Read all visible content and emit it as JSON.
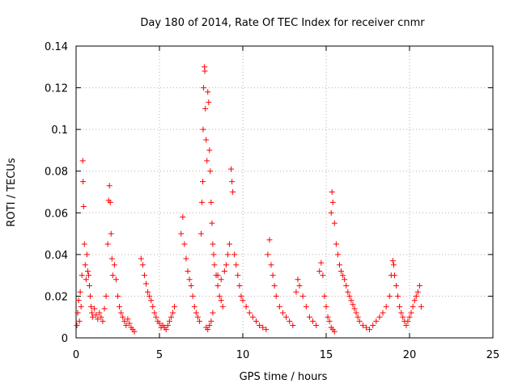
{
  "chart_data": {
    "type": "scatter",
    "title": "Day 180 of 2014, Rate Of TEC Index for receiver cnmr",
    "xlabel": "GPS time / hours",
    "ylabel": "ROTI / TECUs",
    "xlim": [
      0,
      25
    ],
    "ylim": [
      0,
      0.14
    ],
    "x_ticks": [
      "0",
      "5",
      "10",
      "15",
      "20",
      "25"
    ],
    "y_ticks": [
      "0",
      "0.02",
      "0.04",
      "0.06",
      "0.08",
      "0.1",
      "0.12",
      "0.14"
    ],
    "grid": true,
    "marker": "+",
    "color": "#ff0000",
    "series": [
      {
        "name": "ROTI",
        "points": [
          [
            0.05,
            0.006
          ],
          [
            0.1,
            0.012
          ],
          [
            0.15,
            0.018
          ],
          [
            0.2,
            0.008
          ],
          [
            0.25,
            0.022
          ],
          [
            0.3,
            0.015
          ],
          [
            0.35,
            0.03
          ],
          [
            0.4,
            0.085
          ],
          [
            0.42,
            0.075
          ],
          [
            0.45,
            0.063
          ],
          [
            0.5,
            0.045
          ],
          [
            0.55,
            0.035
          ],
          [
            0.6,
            0.028
          ],
          [
            0.65,
            0.04
          ],
          [
            0.7,
            0.032
          ],
          [
            0.75,
            0.03
          ],
          [
            0.8,
            0.025
          ],
          [
            0.85,
            0.02
          ],
          [
            0.9,
            0.015
          ],
          [
            0.95,
            0.012
          ],
          [
            1.0,
            0.01
          ],
          [
            1.1,
            0.014
          ],
          [
            1.2,
            0.011
          ],
          [
            1.3,
            0.009
          ],
          [
            1.4,
            0.012
          ],
          [
            1.5,
            0.01
          ],
          [
            1.6,
            0.008
          ],
          [
            1.7,
            0.014
          ],
          [
            1.8,
            0.02
          ],
          [
            1.9,
            0.045
          ],
          [
            1.95,
            0.066
          ],
          [
            2.0,
            0.073
          ],
          [
            2.05,
            0.065
          ],
          [
            2.1,
            0.05
          ],
          [
            2.15,
            0.038
          ],
          [
            2.2,
            0.03
          ],
          [
            2.3,
            0.035
          ],
          [
            2.4,
            0.028
          ],
          [
            2.5,
            0.02
          ],
          [
            2.6,
            0.015
          ],
          [
            2.7,
            0.012
          ],
          [
            2.8,
            0.01
          ],
          [
            2.9,
            0.008
          ],
          [
            3.0,
            0.006
          ],
          [
            3.1,
            0.009
          ],
          [
            3.2,
            0.007
          ],
          [
            3.3,
            0.005
          ],
          [
            3.4,
            0.004
          ],
          [
            3.5,
            0.003
          ],
          [
            3.9,
            0.038
          ],
          [
            4.0,
            0.035
          ],
          [
            4.1,
            0.03
          ],
          [
            4.2,
            0.026
          ],
          [
            4.3,
            0.022
          ],
          [
            4.4,
            0.02
          ],
          [
            4.5,
            0.018
          ],
          [
            4.6,
            0.015
          ],
          [
            4.7,
            0.012
          ],
          [
            4.8,
            0.01
          ],
          [
            4.9,
            0.008
          ],
          [
            5.0,
            0.007
          ],
          [
            5.1,
            0.005
          ],
          [
            5.2,
            0.006
          ],
          [
            5.3,
            0.005
          ],
          [
            5.4,
            0.004
          ],
          [
            5.5,
            0.006
          ],
          [
            5.6,
            0.008
          ],
          [
            5.7,
            0.01
          ],
          [
            5.8,
            0.012
          ],
          [
            5.9,
            0.015
          ],
          [
            6.3,
            0.05
          ],
          [
            6.4,
            0.058
          ],
          [
            6.5,
            0.045
          ],
          [
            6.6,
            0.038
          ],
          [
            6.7,
            0.032
          ],
          [
            6.8,
            0.028
          ],
          [
            6.9,
            0.025
          ],
          [
            7.0,
            0.02
          ],
          [
            7.1,
            0.015
          ],
          [
            7.2,
            0.012
          ],
          [
            7.3,
            0.01
          ],
          [
            7.4,
            0.008
          ],
          [
            7.5,
            0.05
          ],
          [
            7.55,
            0.065
          ],
          [
            7.6,
            0.075
          ],
          [
            7.62,
            0.1
          ],
          [
            7.65,
            0.12
          ],
          [
            7.7,
            0.13
          ],
          [
            7.72,
            0.128
          ],
          [
            7.75,
            0.11
          ],
          [
            7.8,
            0.095
          ],
          [
            7.85,
            0.085
          ],
          [
            7.9,
            0.118
          ],
          [
            7.95,
            0.113
          ],
          [
            8.0,
            0.09
          ],
          [
            8.05,
            0.08
          ],
          [
            8.1,
            0.065
          ],
          [
            8.15,
            0.055
          ],
          [
            8.2,
            0.045
          ],
          [
            8.25,
            0.04
          ],
          [
            8.3,
            0.035
          ],
          [
            8.4,
            0.03
          ],
          [
            8.5,
            0.025
          ],
          [
            8.6,
            0.02
          ],
          [
            8.7,
            0.018
          ],
          [
            8.8,
            0.015
          ],
          [
            7.8,
            0.005
          ],
          [
            7.9,
            0.004
          ],
          [
            8.0,
            0.006
          ],
          [
            8.1,
            0.008
          ],
          [
            8.2,
            0.012
          ],
          [
            8.5,
            0.03
          ],
          [
            8.7,
            0.028
          ],
          [
            8.9,
            0.032
          ],
          [
            9.0,
            0.035
          ],
          [
            9.1,
            0.04
          ],
          [
            9.2,
            0.045
          ],
          [
            9.3,
            0.081
          ],
          [
            9.35,
            0.075
          ],
          [
            9.4,
            0.07
          ],
          [
            9.5,
            0.04
          ],
          [
            9.6,
            0.035
          ],
          [
            9.7,
            0.03
          ],
          [
            9.8,
            0.025
          ],
          [
            9.9,
            0.02
          ],
          [
            10.0,
            0.018
          ],
          [
            10.2,
            0.015
          ],
          [
            10.4,
            0.012
          ],
          [
            10.6,
            0.01
          ],
          [
            10.8,
            0.008
          ],
          [
            11.0,
            0.006
          ],
          [
            11.2,
            0.005
          ],
          [
            11.4,
            0.004
          ],
          [
            11.5,
            0.04
          ],
          [
            11.6,
            0.047
          ],
          [
            11.7,
            0.035
          ],
          [
            11.8,
            0.03
          ],
          [
            11.9,
            0.025
          ],
          [
            12.0,
            0.02
          ],
          [
            12.2,
            0.015
          ],
          [
            12.4,
            0.012
          ],
          [
            12.6,
            0.01
          ],
          [
            12.8,
            0.008
          ],
          [
            13.0,
            0.006
          ],
          [
            13.2,
            0.022
          ],
          [
            13.3,
            0.028
          ],
          [
            13.4,
            0.025
          ],
          [
            13.6,
            0.02
          ],
          [
            13.8,
            0.015
          ],
          [
            14.0,
            0.01
          ],
          [
            14.2,
            0.008
          ],
          [
            14.4,
            0.006
          ],
          [
            14.6,
            0.032
          ],
          [
            14.7,
            0.036
          ],
          [
            14.8,
            0.03
          ],
          [
            14.9,
            0.02
          ],
          [
            15.0,
            0.015
          ],
          [
            15.1,
            0.01
          ],
          [
            15.2,
            0.008
          ],
          [
            15.3,
            0.005
          ],
          [
            15.4,
            0.004
          ],
          [
            15.5,
            0.003
          ],
          [
            15.3,
            0.06
          ],
          [
            15.35,
            0.07
          ],
          [
            15.4,
            0.065
          ],
          [
            15.5,
            0.055
          ],
          [
            15.6,
            0.045
          ],
          [
            15.7,
            0.04
          ],
          [
            15.8,
            0.035
          ],
          [
            15.9,
            0.032
          ],
          [
            16.0,
            0.03
          ],
          [
            16.1,
            0.028
          ],
          [
            16.2,
            0.025
          ],
          [
            16.3,
            0.022
          ],
          [
            16.4,
            0.02
          ],
          [
            16.5,
            0.018
          ],
          [
            16.6,
            0.016
          ],
          [
            16.7,
            0.014
          ],
          [
            16.8,
            0.012
          ],
          [
            16.9,
            0.01
          ],
          [
            17.0,
            0.008
          ],
          [
            17.2,
            0.006
          ],
          [
            17.4,
            0.005
          ],
          [
            17.6,
            0.004
          ],
          [
            17.8,
            0.006
          ],
          [
            18.0,
            0.008
          ],
          [
            18.2,
            0.01
          ],
          [
            18.4,
            0.012
          ],
          [
            18.6,
            0.015
          ],
          [
            18.8,
            0.02
          ],
          [
            18.9,
            0.03
          ],
          [
            19.0,
            0.037
          ],
          [
            19.05,
            0.035
          ],
          [
            19.1,
            0.03
          ],
          [
            19.2,
            0.025
          ],
          [
            19.3,
            0.02
          ],
          [
            19.4,
            0.015
          ],
          [
            19.5,
            0.012
          ],
          [
            19.6,
            0.01
          ],
          [
            19.7,
            0.008
          ],
          [
            19.8,
            0.006
          ],
          [
            19.9,
            0.008
          ],
          [
            20.0,
            0.01
          ],
          [
            20.1,
            0.012
          ],
          [
            20.2,
            0.015
          ],
          [
            20.3,
            0.018
          ],
          [
            20.4,
            0.02
          ],
          [
            20.5,
            0.022
          ],
          [
            20.6,
            0.025
          ],
          [
            20.7,
            0.015
          ]
        ]
      }
    ]
  }
}
